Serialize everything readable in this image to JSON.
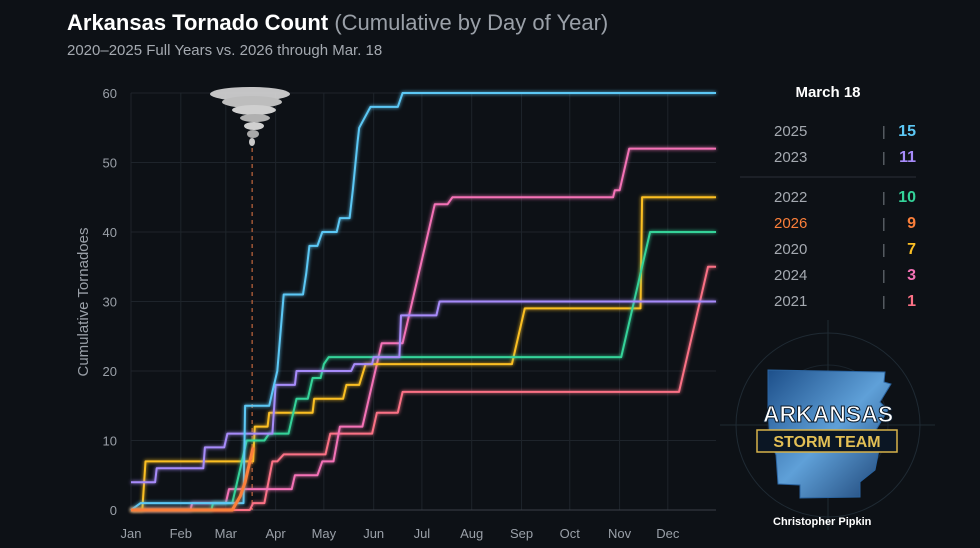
{
  "header": {
    "title": "Arkansas Tornado Count",
    "title_suffix": "(Cumulative by Day of Year)",
    "subtitle": "2020–2025 Full Years vs. 2026 through Mar. 18"
  },
  "credit": "Christopher Pipkin",
  "logo": {
    "line1": "ARKANSAS",
    "line2": "STORM TEAM"
  },
  "chart_data": {
    "type": "line",
    "title": "Arkansas Tornado Count (Cumulative by Day of Year)",
    "ylabel": "Cumulative Tornadoes",
    "xlabel": "",
    "ylim": [
      0,
      60
    ],
    "xlim": [
      1,
      365
    ],
    "yticks": [
      0,
      10,
      20,
      30,
      40,
      50,
      60
    ],
    "xticks": [
      {
        "label": "Jan",
        "day": 1
      },
      {
        "label": "Feb",
        "day": 32
      },
      {
        "label": "Mar",
        "day": 60
      },
      {
        "label": "Apr",
        "day": 91
      },
      {
        "label": "May",
        "day": 121
      },
      {
        "label": "Jun",
        "day": 152
      },
      {
        "label": "Jul",
        "day": 182
      },
      {
        "label": "Aug",
        "day": 213
      },
      {
        "label": "Sep",
        "day": 244
      },
      {
        "label": "Oct",
        "day": 274
      },
      {
        "label": "Nov",
        "day": 305
      },
      {
        "label": "Dec",
        "day": 335
      }
    ],
    "grid": true,
    "marker_day": 77,
    "legend_title": "March 18",
    "legend_placement": "right",
    "series": [
      {
        "name": "2025",
        "color": "#5cc8f5",
        "value_on_date": "15",
        "points": [
          [
            1,
            0
          ],
          [
            7,
            1
          ],
          [
            71,
            1
          ],
          [
            72,
            15
          ],
          [
            87,
            15
          ],
          [
            89,
            17
          ],
          [
            92,
            20
          ],
          [
            96,
            31
          ],
          [
            108,
            31
          ],
          [
            110,
            34
          ],
          [
            112,
            38
          ],
          [
            117,
            38
          ],
          [
            120,
            40
          ],
          [
            129,
            40
          ],
          [
            131,
            42
          ],
          [
            137,
            42
          ],
          [
            139,
            46
          ],
          [
            142,
            53
          ],
          [
            143,
            55
          ],
          [
            150,
            58
          ],
          [
            167,
            58
          ],
          [
            170,
            60
          ],
          [
            365,
            60
          ]
        ]
      },
      {
        "name": "2023",
        "color": "#a78bfa",
        "value_on_date": "11",
        "points": [
          [
            1,
            4
          ],
          [
            16,
            4
          ],
          [
            17,
            6
          ],
          [
            46,
            6
          ],
          [
            47,
            9
          ],
          [
            59,
            9
          ],
          [
            61,
            11
          ],
          [
            89,
            11
          ],
          [
            91,
            18
          ],
          [
            103,
            18
          ],
          [
            104,
            20
          ],
          [
            138,
            20
          ],
          [
            140,
            21
          ],
          [
            151,
            21
          ],
          [
            152,
            22
          ],
          [
            168,
            22
          ],
          [
            169,
            28
          ],
          [
            191,
            28
          ],
          [
            193,
            30
          ],
          [
            365,
            30
          ]
        ]
      },
      {
        "name": "2022",
        "color": "#34d399",
        "value_on_date": "10",
        "points": [
          [
            1,
            0
          ],
          [
            51,
            0
          ],
          [
            52,
            1
          ],
          [
            64,
            1
          ],
          [
            73,
            10
          ],
          [
            84,
            10
          ],
          [
            87,
            11
          ],
          [
            99,
            11
          ],
          [
            104,
            16
          ],
          [
            111,
            16
          ],
          [
            114,
            19
          ],
          [
            119,
            19
          ],
          [
            121,
            21
          ],
          [
            124,
            22
          ],
          [
            306,
            22
          ],
          [
            324,
            40
          ],
          [
            365,
            40
          ]
        ]
      },
      {
        "name": "2026",
        "color": "#fb7f3a",
        "value_on_date": "9",
        "points": [
          [
            1,
            0
          ],
          [
            64,
            0
          ],
          [
            69,
            2
          ],
          [
            72,
            4
          ],
          [
            74,
            6
          ],
          [
            77,
            9
          ]
        ]
      },
      {
        "name": "2020",
        "color": "#fbbf24",
        "value_on_date": "7",
        "points": [
          [
            1,
            0
          ],
          [
            8,
            0
          ],
          [
            10,
            7
          ],
          [
            77,
            7
          ],
          [
            78,
            12
          ],
          [
            86,
            12
          ],
          [
            87,
            14
          ],
          [
            114,
            14
          ],
          [
            115,
            16
          ],
          [
            133,
            16
          ],
          [
            135,
            18
          ],
          [
            143,
            18
          ],
          [
            147,
            21
          ],
          [
            238,
            21
          ],
          [
            246,
            29
          ],
          [
            318,
            29
          ],
          [
            319,
            45
          ],
          [
            365,
            45
          ]
        ]
      },
      {
        "name": "2024",
        "color": "#f472b6",
        "value_on_date": "3",
        "points": [
          [
            1,
            0
          ],
          [
            38,
            0
          ],
          [
            39,
            1
          ],
          [
            60,
            1
          ],
          [
            62,
            3
          ],
          [
            89,
            3
          ],
          [
            101,
            3
          ],
          [
            103,
            5
          ],
          [
            117,
            5
          ],
          [
            120,
            7
          ],
          [
            127,
            7
          ],
          [
            131,
            12
          ],
          [
            145,
            12
          ],
          [
            157,
            24
          ],
          [
            170,
            24
          ],
          [
            190,
            44
          ],
          [
            198,
            44
          ],
          [
            201,
            45
          ],
          [
            301,
            45
          ],
          [
            302,
            46
          ],
          [
            305,
            46
          ],
          [
            311,
            52
          ],
          [
            365,
            52
          ]
        ]
      },
      {
        "name": "2021",
        "color": "#fb7185",
        "value_on_date": "1",
        "points": [
          [
            1,
            0
          ],
          [
            75,
            0
          ],
          [
            77,
            1
          ],
          [
            84,
            1
          ],
          [
            89,
            7
          ],
          [
            92,
            7
          ],
          [
            96,
            8
          ],
          [
            122,
            8
          ],
          [
            125,
            11
          ],
          [
            151,
            11
          ],
          [
            154,
            14
          ],
          [
            167,
            14
          ],
          [
            170,
            17
          ],
          [
            342,
            17
          ],
          [
            360,
            35
          ],
          [
            365,
            35
          ]
        ]
      }
    ]
  }
}
